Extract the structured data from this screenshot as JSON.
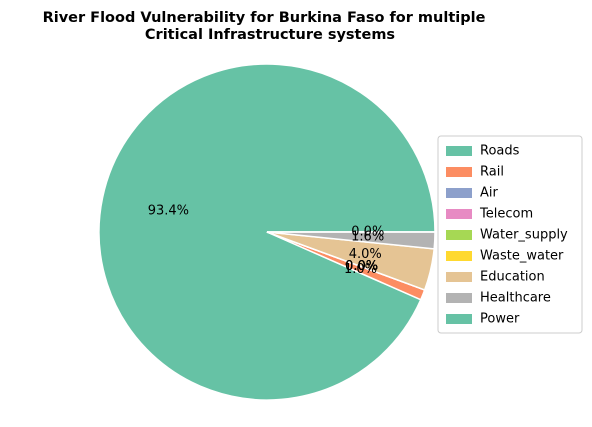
{
  "chart_data": {
    "type": "pie",
    "title_line1": "River Flood Vulnerability for Burkina Faso for multiple",
    "title_line2": "Critical Infrastructure systems",
    "legend_position": "center-right",
    "slices": [
      {
        "name": "Roads",
        "value": 93.4,
        "label": "93.4%",
        "color": "#66c2a5"
      },
      {
        "name": "Rail",
        "value": 1.0,
        "label": "1.0%",
        "color": "#fc8d62"
      },
      {
        "name": "Air",
        "value": 0.0,
        "label": "0.0%",
        "color": "#8da0cb"
      },
      {
        "name": "Telecom",
        "value": 0.0,
        "label": "0.0%",
        "color": "#e78ac3"
      },
      {
        "name": "Water_supply",
        "value": 0.0,
        "label": "0.0%",
        "color": "#a6d854"
      },
      {
        "name": "Waste_water",
        "value": 0.0,
        "label": "0.0%",
        "color": "#ffd92f"
      },
      {
        "name": "Education",
        "value": 4.0,
        "label": "4.0%",
        "color": "#e5c494"
      },
      {
        "name": "Healthcare",
        "value": 1.6,
        "label": "1.6%",
        "color": "#b3b3b3"
      },
      {
        "name": "Power",
        "value": 0.0,
        "label": "0.0%",
        "color": "#66c2a5"
      }
    ]
  }
}
